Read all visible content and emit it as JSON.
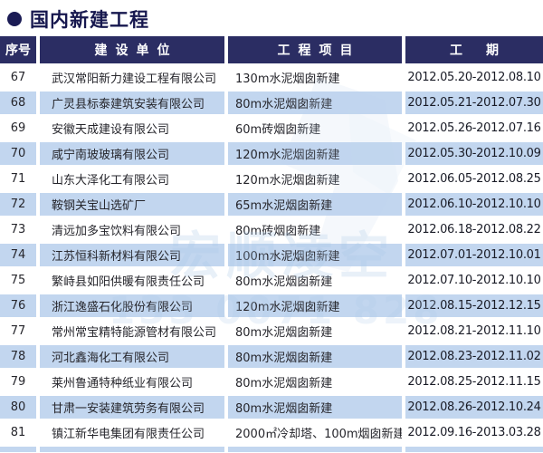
{
  "page_title": {
    "bullet": "",
    "text": "国内新建工程"
  },
  "table": {
    "columns": {
      "no": "序号",
      "company": "建设单位",
      "project": "工程项目",
      "period": "工期"
    },
    "rows": [
      {
        "no": "67",
        "company": "武汉常阳新力建设工程有限公司",
        "project": "130m水泥烟囱新建",
        "period": "2012.05.20-2012.08.10"
      },
      {
        "no": "68",
        "company": "广灵县标泰建筑安装有限公司",
        "project": "80m水泥烟囱新建",
        "period": "2012.05.21-2012.07.30"
      },
      {
        "no": "69",
        "company": "安徽天成建设有限公司",
        "project": "60m砖烟囱新建",
        "period": "2012.05.26-2012.07.16"
      },
      {
        "no": "70",
        "company": "咸宁南玻玻璃有限公司",
        "project": "120m水泥烟囱新建",
        "period": "2012.05.30-2012.10.09"
      },
      {
        "no": "71",
        "company": "山东大泽化工有限公司",
        "project": "120m水泥烟囱新建",
        "period": "2012.06.05-2012.08.25"
      },
      {
        "no": "72",
        "company": "鞍钢关宝山选矿厂",
        "project": "65m水泥烟囱新建",
        "period": "2012.06.10-2012.10.10"
      },
      {
        "no": "73",
        "company": "清远加多宝饮料有限公司",
        "project": "80m砖烟囱新建",
        "period": "2012.06.18-2012.08.22"
      },
      {
        "no": "74",
        "company": "江苏恒科新材料有限公司",
        "project": "100m水泥烟囱新建",
        "period": "2012.07.01-2012.10.01"
      },
      {
        "no": "75",
        "company": "繁峙县如阳供暖有限责任公司",
        "project": "80m水泥烟囱新建",
        "period": "2012.07.10-2012.10.10"
      },
      {
        "no": "76",
        "company": "浙江逸盛石化股份有限公司",
        "project": "120m水泥烟囱新建",
        "period": "2012.08.15-2012.12.15"
      },
      {
        "no": "77",
        "company": "常州常宝精特能源管材有限公司",
        "project": "80m水泥烟囱新建",
        "period": "2012.08.21-2012.11.10"
      },
      {
        "no": "78",
        "company": "河北鑫海化工有限公司",
        "project": "80m水泥烟囱新建",
        "period": "2012.08.23-2012.11.02"
      },
      {
        "no": "79",
        "company": "莱州鲁通特种纸业有限公司",
        "project": "80m水泥烟囱新建",
        "period": "2012.08.25-2012.11.15"
      },
      {
        "no": "80",
        "company": "甘肃一安装建筑劳务有限公司",
        "project": "80m水泥烟囱新建",
        "period": "2012.08.26-2012.10.24"
      },
      {
        "no": "81",
        "company": "镇江新华电集团有限责任公司",
        "project": "2000㎡冷却塔、100m烟囱新建",
        "period": "2012.09.16-2013.03.28"
      }
    ]
  },
  "watermark": {
    "brand_text": "宏顺凌空",
    "hotline_text": "133 0071 828"
  },
  "colors": {
    "header_bg": "#2b2d63",
    "title_color": "#16174e",
    "row_alt_bg": "#c2d6ef",
    "row_bg": "#ffffff",
    "header_text": "#ffffff",
    "body_text": "#26262c",
    "watermark_blue": "#b6d0ea"
  }
}
